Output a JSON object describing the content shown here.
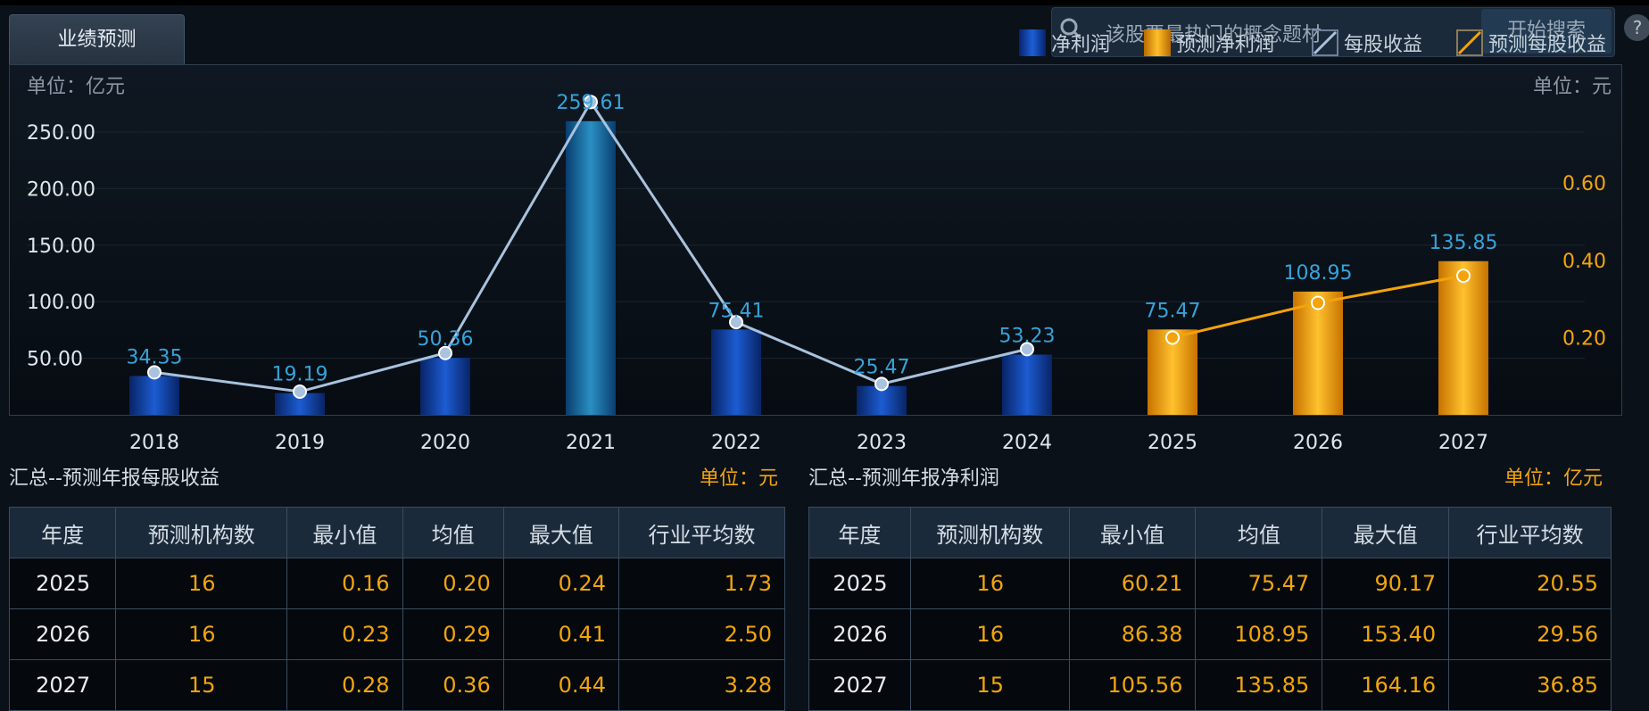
{
  "tab": {
    "label": "业绩预测"
  },
  "search": {
    "placeholder": "该股票最热门的概念题材",
    "button": "开始搜索",
    "help": "?"
  },
  "legend": [
    {
      "label": "净利润",
      "color": "#1346b8",
      "kind": "bar"
    },
    {
      "label": "预测净利润",
      "color": "#f4a30a",
      "kind": "bar"
    },
    {
      "label": "每股收益",
      "color": "#a9c2dd",
      "kind": "line"
    },
    {
      "label": "预测每股收益",
      "color": "#f4a30a",
      "kind": "line"
    }
  ],
  "chart_data": {
    "type": "bar",
    "left_unit": "单位：亿元",
    "right_unit": "单位：元",
    "categories": [
      "2018",
      "2019",
      "2020",
      "2021",
      "2022",
      "2023",
      "2024",
      "2025",
      "2026",
      "2027"
    ],
    "series": [
      {
        "name": "净利润",
        "kind": "bar",
        "axis": "left",
        "values": [
          34.35,
          19.19,
          50.36,
          259.61,
          75.41,
          25.47,
          53.23,
          null,
          null,
          null
        ]
      },
      {
        "name": "预测净利润",
        "kind": "bar",
        "axis": "left",
        "values": [
          null,
          null,
          null,
          null,
          null,
          null,
          null,
          75.47,
          108.95,
          135.85
        ]
      },
      {
        "name": "每股收益",
        "kind": "line",
        "axis": "right",
        "values": [
          0.11,
          0.06,
          0.16,
          0.81,
          0.24,
          0.08,
          0.17,
          null,
          null,
          null
        ]
      },
      {
        "name": "预测每股收益",
        "kind": "line",
        "axis": "right",
        "values": [
          null,
          null,
          null,
          null,
          null,
          null,
          null,
          0.2,
          0.29,
          0.36
        ]
      }
    ],
    "bar_labels": [
      "34.35",
      "19.19",
      "50.36",
      "259.61",
      "75.41",
      "25.47",
      "53.23",
      "75.47",
      "108.95",
      "135.85"
    ],
    "left_ticks": [
      "50.00",
      "100.00",
      "150.00",
      "200.00",
      "250.00"
    ],
    "right_ticks": [
      "0.20",
      "0.40",
      "0.60"
    ],
    "ylim_left": [
      0,
      280
    ],
    "ylim_right": [
      0,
      0.82
    ],
    "grid": true,
    "legend_position": "top-right"
  },
  "eps_table": {
    "title": "汇总--预测年报每股收益",
    "unit": "单位：元",
    "headers": [
      "年度",
      "预测机构数",
      "最小值",
      "均值",
      "最大值",
      "行业平均数"
    ],
    "rows": [
      [
        "2025",
        "16",
        "0.16",
        "0.20",
        "0.24",
        "1.73"
      ],
      [
        "2026",
        "16",
        "0.23",
        "0.29",
        "0.41",
        "2.50"
      ],
      [
        "2027",
        "15",
        "0.28",
        "0.36",
        "0.44",
        "3.28"
      ]
    ]
  },
  "profit_table": {
    "title": "汇总--预测年报净利润",
    "unit": "单位：亿元",
    "headers": [
      "年度",
      "预测机构数",
      "最小值",
      "均值",
      "最大值",
      "行业平均数"
    ],
    "rows": [
      [
        "2025",
        "16",
        "60.21",
        "75.47",
        "90.17",
        "20.55"
      ],
      [
        "2026",
        "16",
        "86.38",
        "108.95",
        "153.40",
        "29.56"
      ],
      [
        "2027",
        "15",
        "105.56",
        "135.85",
        "164.16",
        "36.85"
      ]
    ]
  }
}
